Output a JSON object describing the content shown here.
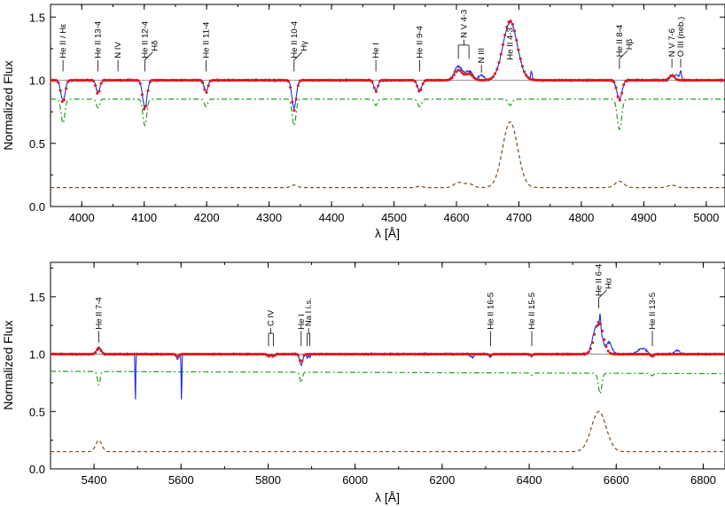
{
  "colors": {
    "observed": "#1f2be0",
    "model": "#e01a1a",
    "star1": "#1e9e1e",
    "star2": "#7a4a1e",
    "axis": "#000000",
    "unity": "#777777"
  },
  "chart_data": [
    {
      "type": "line",
      "title": "",
      "xlabel": "λ [Å]",
      "ylabel": "Normalized Flux",
      "xlim": [
        3950,
        5030
      ],
      "ylim": [
        0.0,
        1.6
      ],
      "x_ticks": [
        4000,
        4100,
        4200,
        4300,
        4400,
        4500,
        4600,
        4700,
        4800,
        4900,
        5000
      ],
      "y_ticks": [
        0.0,
        0.5,
        1.0,
        1.5
      ],
      "tick_labels_x": [
        "4000",
        "4100",
        "4200",
        "4300",
        "4400",
        "4500",
        "4600",
        "4700",
        "4800",
        "4900",
        "5000"
      ],
      "tick_labels_y": [
        "0.0",
        "0.5",
        "1.0",
        "1.5"
      ],
      "unity_level": 1.0,
      "series": [
        {
          "key": "observed",
          "style": "solid",
          "offset": 1.0,
          "scale": 1.0,
          "noise": 0.008,
          "features": [
            [
              3970,
              -0.16,
              3.5
            ],
            [
              4026,
              -0.1,
              3.0
            ],
            [
              4101,
              -0.22,
              3.5
            ],
            [
              4199,
              -0.09,
              3.0
            ],
            [
              4340,
              -0.22,
              3.5
            ],
            [
              4471,
              -0.08,
              3.0
            ],
            [
              4541,
              -0.08,
              3.5
            ],
            [
              4603,
              0.11,
              6.0
            ],
            [
              4620,
              0.07,
              6.0
            ],
            [
              4640,
              0.04,
              4.0
            ],
            [
              4686,
              0.46,
              11.5
            ],
            [
              4720,
              0.07,
              1.2
            ],
            [
              4861,
              -0.15,
              4.0
            ],
            [
              4945,
              0.03,
              3.5
            ],
            [
              4953,
              0.04,
              3.0
            ],
            [
              4959,
              0.07,
              1.2
            ]
          ]
        },
        {
          "key": "model",
          "style": "dotted",
          "offset": 1.0,
          "scale": 1.0,
          "noise": 0.0,
          "features": [
            [
              3970,
              -0.18,
              3.5
            ],
            [
              4026,
              -0.11,
              3.0
            ],
            [
              4101,
              -0.24,
              3.5
            ],
            [
              4199,
              -0.1,
              3.0
            ],
            [
              4340,
              -0.24,
              3.5
            ],
            [
              4471,
              -0.09,
              3.0
            ],
            [
              4541,
              -0.09,
              3.5
            ],
            [
              4603,
              0.08,
              6.0
            ],
            [
              4620,
              0.05,
              6.0
            ],
            [
              4686,
              0.47,
              11.5
            ],
            [
              4861,
              -0.16,
              4.0
            ],
            [
              4945,
              0.04,
              4.0
            ]
          ]
        },
        {
          "key": "star1",
          "style": "dashdot",
          "offset": 0.85,
          "scale": 1.0,
          "noise": 0.0,
          "features": [
            [
              3970,
              -0.19,
              3.0
            ],
            [
              4026,
              -0.07,
              2.5
            ],
            [
              4101,
              -0.21,
              3.0
            ],
            [
              4199,
              -0.06,
              2.5
            ],
            [
              4340,
              -0.21,
              3.0
            ],
            [
              4471,
              -0.05,
              2.5
            ],
            [
              4541,
              -0.06,
              3.0
            ],
            [
              4686,
              -0.05,
              3.0
            ],
            [
              4861,
              -0.24,
              3.5
            ]
          ]
        },
        {
          "key": "star2",
          "style": "dashed",
          "offset": 0.15,
          "scale": 1.0,
          "noise": 0.0,
          "features": [
            [
              4340,
              0.02,
              5.0
            ],
            [
              4541,
              0.01,
              5.0
            ],
            [
              4603,
              0.04,
              7.0
            ],
            [
              4620,
              0.03,
              7.0
            ],
            [
              4686,
              0.52,
              12.0
            ],
            [
              4861,
              0.05,
              7.0
            ],
            [
              4945,
              0.02,
              6.0
            ]
          ]
        }
      ],
      "annotations": [
        {
          "text": "He II / Hε",
          "x": 3970,
          "ybot": 1.07,
          "ytop": 1.16
        },
        {
          "text": "He II 13-4",
          "x": 4026,
          "ybot": 1.07,
          "ytop": 1.16
        },
        {
          "text": "N IV",
          "x": 4058,
          "ybot": 1.07,
          "ytop": 1.16
        },
        {
          "text": "He II 12-4",
          "x": 4101,
          "ybot": 1.07,
          "ytop": 1.16,
          "text2": "Hδ"
        },
        {
          "text": "He II 11-4",
          "x": 4199,
          "ybot": 1.07,
          "ytop": 1.16
        },
        {
          "text": "He II 10-4",
          "x": 4340,
          "ybot": 1.07,
          "ytop": 1.16,
          "text2": "Hγ"
        },
        {
          "text": "He I",
          "x": 4471,
          "ybot": 1.07,
          "ytop": 1.16
        },
        {
          "text": "He II 9-4",
          "x": 4541,
          "ybot": 1.07,
          "ytop": 1.16
        },
        {
          "text": "N V 4-3",
          "x": 4612,
          "ybot": 1.17,
          "ytop": 1.25,
          "bracket": [
            4603,
            4620
          ]
        },
        {
          "text": "N III",
          "x": 4640,
          "ybot": 1.06,
          "ytop": 1.12
        },
        {
          "text": "He II 4-3",
          "x": 4686,
          "ybot": 1.5,
          "ytop": 1.5,
          "inside": true
        },
        {
          "text": "He II 8-4",
          "x": 4861,
          "ybot": 1.09,
          "ytop": 1.17,
          "text2": "Hβ"
        },
        {
          "text": "N V 7-6",
          "x": 4945,
          "ybot": 1.1,
          "ytop": 1.17
        },
        {
          "text": "O III (neb.)",
          "x": 4959,
          "ybot": 1.1,
          "ytop": 1.17
        }
      ]
    },
    {
      "type": "line",
      "title": "",
      "xlabel": "λ [Å]",
      "ylabel": "Normalized Flux",
      "xlim": [
        5300,
        6850
      ],
      "ylim": [
        0.0,
        1.8
      ],
      "x_ticks": [
        5400,
        5600,
        5800,
        6000,
        6200,
        6400,
        6600,
        6800
      ],
      "y_ticks": [
        0.0,
        0.5,
        1.0,
        1.5
      ],
      "tick_labels_x": [
        "5400",
        "5600",
        "5800",
        "6000",
        "6200",
        "6400",
        "6600",
        "6800"
      ],
      "tick_labels_y": [
        "0.0",
        "0.5",
        "1.0",
        "1.5"
      ],
      "unity_level": 1.0,
      "series": [
        {
          "key": "observed",
          "style": "solid",
          "offset": 1.0,
          "scale": 1.0,
          "noise": 0.008,
          "features": [
            [
              5411,
              0.06,
              5.0
            ],
            [
              5495,
              -0.42,
              0.8
            ],
            [
              5601,
              -0.42,
              0.8
            ],
            [
              5592,
              -0.04,
              3.0
            ],
            [
              5801,
              -0.01,
              3.0
            ],
            [
              5812,
              -0.01,
              3.0
            ],
            [
              5876,
              -0.1,
              3.5
            ],
            [
              5890,
              -0.03,
              1.5
            ],
            [
              5896,
              -0.03,
              1.5
            ],
            [
              6270,
              -0.03,
              4.0
            ],
            [
              6311,
              -0.02,
              3.0
            ],
            [
              6406,
              -0.02,
              3.0
            ],
            [
              6548,
              0.1,
              6.0
            ],
            [
              6560,
              0.24,
              8.0
            ],
            [
              6563,
              0.12,
              1.2
            ],
            [
              6584,
              0.1,
              6.0
            ],
            [
              6660,
              0.05,
              10.0
            ],
            [
              6683,
              -0.02,
              3.0
            ],
            [
              6740,
              0.03,
              6.0
            ]
          ]
        },
        {
          "key": "model",
          "style": "dotted",
          "offset": 1.0,
          "scale": 1.0,
          "noise": 0.0,
          "features": [
            [
              5411,
              0.05,
              5.0
            ],
            [
              5592,
              -0.02,
              3.0
            ],
            [
              5801,
              -0.02,
              3.0
            ],
            [
              5812,
              -0.02,
              3.0
            ],
            [
              5876,
              -0.07,
              3.5
            ],
            [
              6311,
              -0.01,
              3.0
            ],
            [
              6406,
              -0.01,
              3.0
            ],
            [
              6560,
              0.28,
              10.0
            ],
            [
              6683,
              -0.02,
              3.0
            ]
          ]
        },
        {
          "key": "star1",
          "style": "dashdot",
          "offset": 0.85,
          "scale": 1.0,
          "noise": 0.0,
          "slope": [
            -0.02
          ],
          "features": [
            [
              5411,
              -0.12,
              3.0
            ],
            [
              5876,
              -0.09,
              3.0
            ],
            [
              6563,
              -0.18,
              4.0
            ],
            [
              6406,
              -0.02,
              3.0
            ],
            [
              6683,
              -0.02,
              3.0
            ]
          ]
        },
        {
          "key": "star2",
          "style": "dashed",
          "offset": 0.15,
          "scale": 1.0,
          "noise": 0.0,
          "features": [
            [
              5411,
              0.1,
              7.0
            ],
            [
              6560,
              0.35,
              17.0
            ]
          ]
        }
      ],
      "annotations": [
        {
          "text": "He II 7-4",
          "x": 5411,
          "ybot": 1.1,
          "ytop": 1.2
        },
        {
          "text": "C IV",
          "x": 5806,
          "ybot": 1.07,
          "ytop": 1.15,
          "bracket": [
            5801,
            5812
          ]
        },
        {
          "text": "He I",
          "x": 5876,
          "ybot": 1.07,
          "ytop": 1.2
        },
        {
          "text": "Na I i.s.",
          "x": 5893,
          "ybot": 1.07,
          "ytop": 1.15,
          "bracket": [
            5890,
            5896
          ]
        },
        {
          "text": "He II 16-5",
          "x": 6311,
          "ybot": 1.07,
          "ytop": 1.2
        },
        {
          "text": "He II 15-5",
          "x": 6406,
          "ybot": 1.07,
          "ytop": 1.2
        },
        {
          "text": "He II 6-4",
          "x": 6560,
          "ybot": 1.4,
          "ytop": 1.49,
          "text2": "Hα"
        },
        {
          "text": "He II 13-5",
          "x": 6683,
          "ybot": 1.07,
          "ytop": 1.2
        }
      ]
    }
  ]
}
